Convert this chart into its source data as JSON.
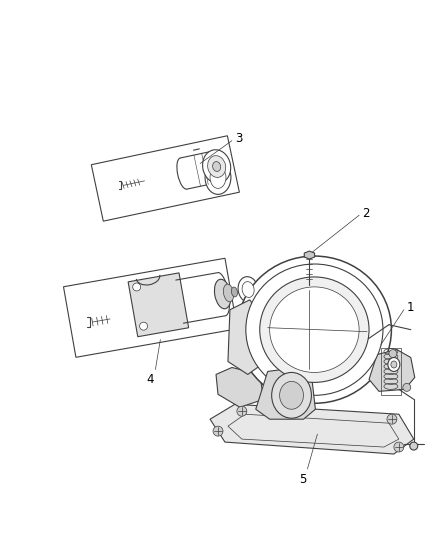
{
  "background_color": "#ffffff",
  "line_color": "#404040",
  "label_color": "#000000",
  "figsize": [
    4.38,
    5.33
  ],
  "dpi": 100,
  "lw": 0.8,
  "label_fontsize": 8.5
}
